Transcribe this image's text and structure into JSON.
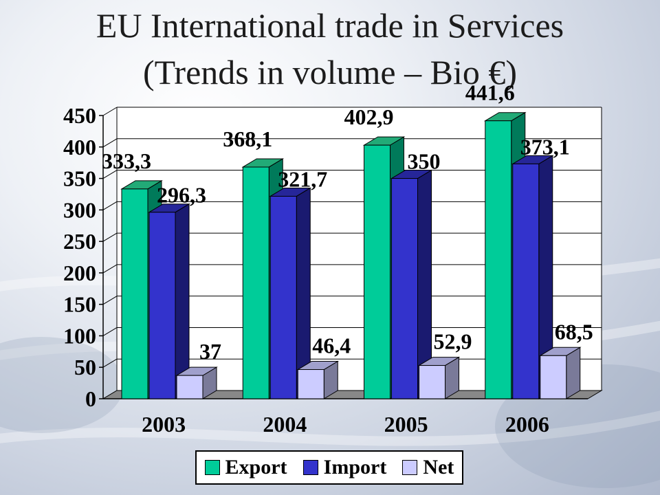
{
  "colors": {
    "export": "#00cc99",
    "export_side": "#007a5a",
    "export_top": "#22aa77",
    "import": "#3333cc",
    "import_side": "#1a1a70",
    "import_top": "#262699",
    "net": "#ccccff",
    "net_side": "#7a7a99",
    "net_top": "#a0a0cc",
    "floor": "#888888"
  },
  "chart_data": {
    "type": "bar",
    "title": "EU International trade in Services",
    "subtitle": "(Trends in volume – Bio €)",
    "categories": [
      "2003",
      "2004",
      "2005",
      "2006"
    ],
    "series": [
      {
        "name": "Export",
        "values": [
          333.3,
          368.1,
          402.9,
          441.6
        ],
        "labels": [
          "333,3",
          "368,1",
          "402,9",
          "441,6"
        ]
      },
      {
        "name": "Import",
        "values": [
          296.3,
          321.7,
          350,
          373.1
        ],
        "labels": [
          "296,3",
          "321,7",
          "350",
          "373,1"
        ]
      },
      {
        "name": "Net",
        "values": [
          37,
          46.4,
          52.9,
          68.5
        ],
        "labels": [
          "37",
          "46,4",
          "52,9",
          "68,5"
        ]
      }
    ],
    "yticks": [
      "0",
      "50",
      "100",
      "150",
      "200",
      "250",
      "300",
      "350",
      "400",
      "450"
    ],
    "ylim": [
      0,
      450
    ],
    "grid": true,
    "legend_position": "bottom"
  }
}
